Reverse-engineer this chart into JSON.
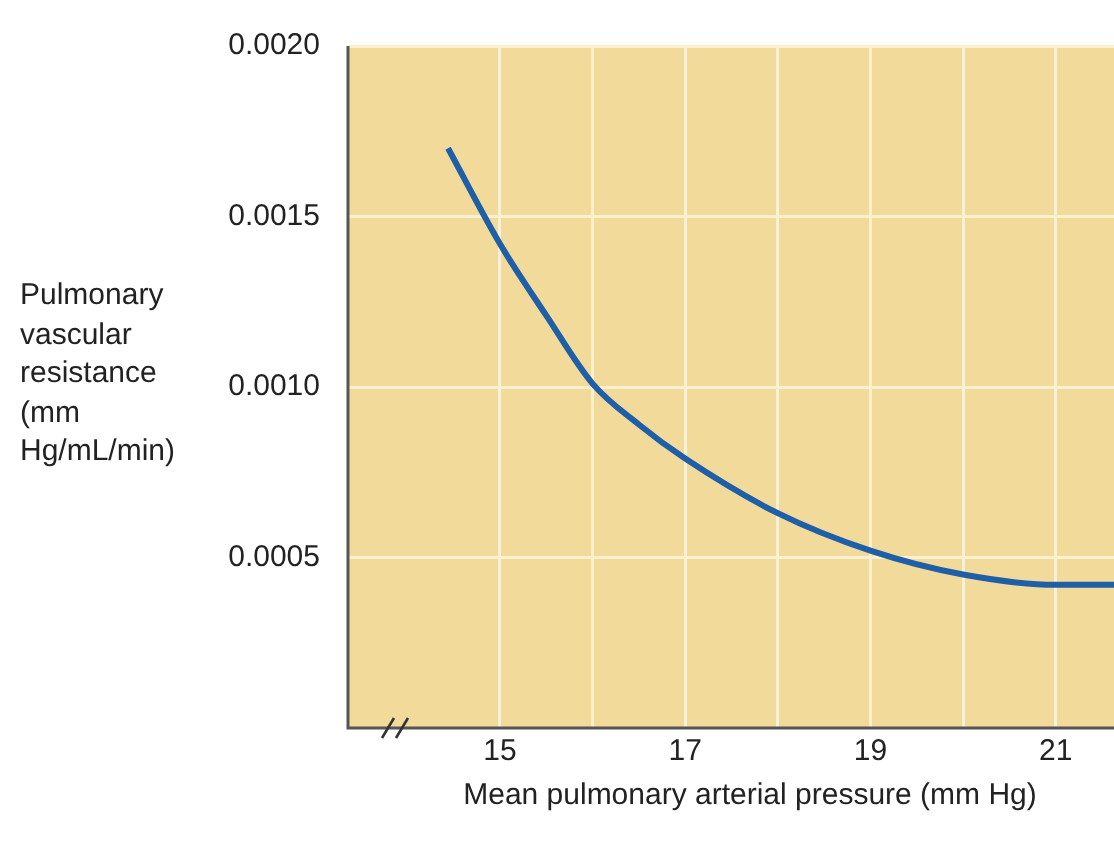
{
  "chart_data": {
    "type": "line",
    "xlabel": "Mean pulmonary arterial pressure (mm Hg)",
    "ylabel": "Pulmonary vascular resistance (mm Hg/mL/min)",
    "xlim": [
      13.36,
      21.63
    ],
    "xticks": [
      15,
      {
        "value": 16,
        "label": null
      },
      17,
      {
        "value": 18,
        "label": null
      },
      19,
      {
        "value": 20,
        "label": null
      },
      21
    ],
    "ylim": [
      0,
      0.002
    ],
    "yticks": [
      {
        "value": 0.0005,
        "label": "0.0005"
      },
      {
        "value": 0.001,
        "label": "0.0010"
      },
      {
        "value": 0.0015,
        "label": "0.0015"
      },
      {
        "value": 0.002,
        "label": "0.0020"
      }
    ],
    "grid": true,
    "marker": "none",
    "line_style": "solid",
    "series": [
      {
        "color": "#1f5fa8",
        "x": [
          14.44,
          15,
          15.5,
          16,
          16.5,
          17,
          18,
          19,
          20,
          21,
          21.63
        ],
        "values": [
          0.0017,
          0.00142,
          0.00121,
          0.00101,
          0.00089,
          0.00079,
          0.00063,
          0.00052,
          0.00045,
          0.00042,
          0.00042
        ]
      }
    ]
  }
}
